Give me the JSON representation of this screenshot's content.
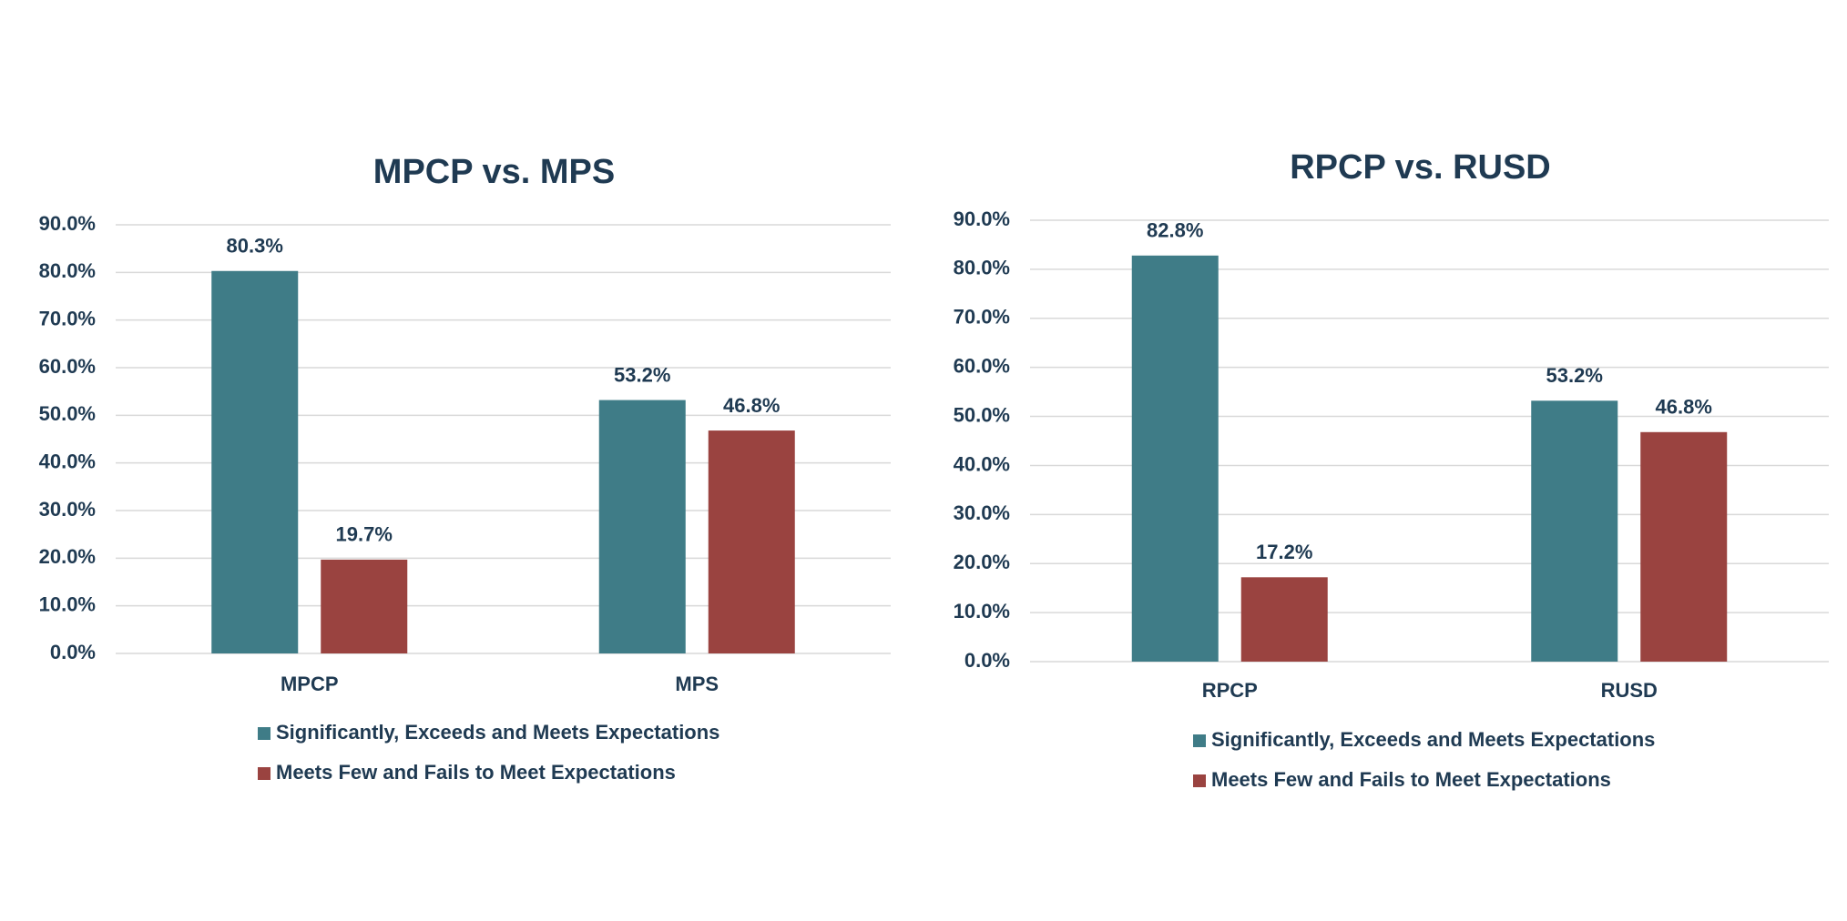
{
  "chart_data": [
    {
      "type": "bar",
      "title": "MPCP vs. MPS",
      "categories": [
        "MPCP",
        "MPS"
      ],
      "series": [
        {
          "name": "Significantly, Exceeds and Meets Expectations",
          "color": "#3f7c87",
          "values": [
            80.3,
            53.2
          ],
          "value_labels": [
            "80.3%",
            "53.2%"
          ]
        },
        {
          "name": "Meets Few and Fails to Meet Expectations",
          "color": "#9a4340",
          "values": [
            19.7,
            46.8
          ],
          "value_labels": [
            "19.7%",
            "46.8%"
          ]
        }
      ],
      "ylim": [
        0,
        90
      ],
      "yticks": [
        {
          "value": 0,
          "label": "0.0%"
        },
        {
          "value": 10,
          "label": "10.0%"
        },
        {
          "value": 20,
          "label": "20.0%"
        },
        {
          "value": 30,
          "label": "30.0%"
        },
        {
          "value": 40,
          "label": "40.0%"
        },
        {
          "value": 50,
          "label": "50.0%"
        },
        {
          "value": 60,
          "label": "60.0%"
        },
        {
          "value": 70,
          "label": "70.0%"
        },
        {
          "value": 80,
          "label": "80.0%"
        },
        {
          "value": 90,
          "label": "90.0%"
        }
      ],
      "grid": true,
      "legend": "bottom"
    },
    {
      "type": "bar",
      "title": "RPCP vs. RUSD",
      "categories": [
        "RPCP",
        "RUSD"
      ],
      "series": [
        {
          "name": "Significantly, Exceeds and Meets Expectations",
          "color": "#3f7c87",
          "values": [
            82.8,
            53.2
          ],
          "value_labels": [
            "82.8%",
            "53.2%"
          ]
        },
        {
          "name": "Meets Few and Fails to Meet Expectations",
          "color": "#9a4340",
          "values": [
            17.2,
            46.8
          ],
          "value_labels": [
            "17.2%",
            "46.8%"
          ]
        }
      ],
      "ylim": [
        0,
        90
      ],
      "yticks": [
        {
          "value": 0,
          "label": "0.0%"
        },
        {
          "value": 10,
          "label": "10.0%"
        },
        {
          "value": 20,
          "label": "20.0%"
        },
        {
          "value": 30,
          "label": "30.0%"
        },
        {
          "value": 40,
          "label": "40.0%"
        },
        {
          "value": 50,
          "label": "50.0%"
        },
        {
          "value": 60,
          "label": "60.0%"
        },
        {
          "value": 70,
          "label": "70.0%"
        },
        {
          "value": 80,
          "label": "80.0%"
        },
        {
          "value": 90,
          "label": "90.0%"
        }
      ],
      "grid": true,
      "legend": "bottom"
    }
  ]
}
